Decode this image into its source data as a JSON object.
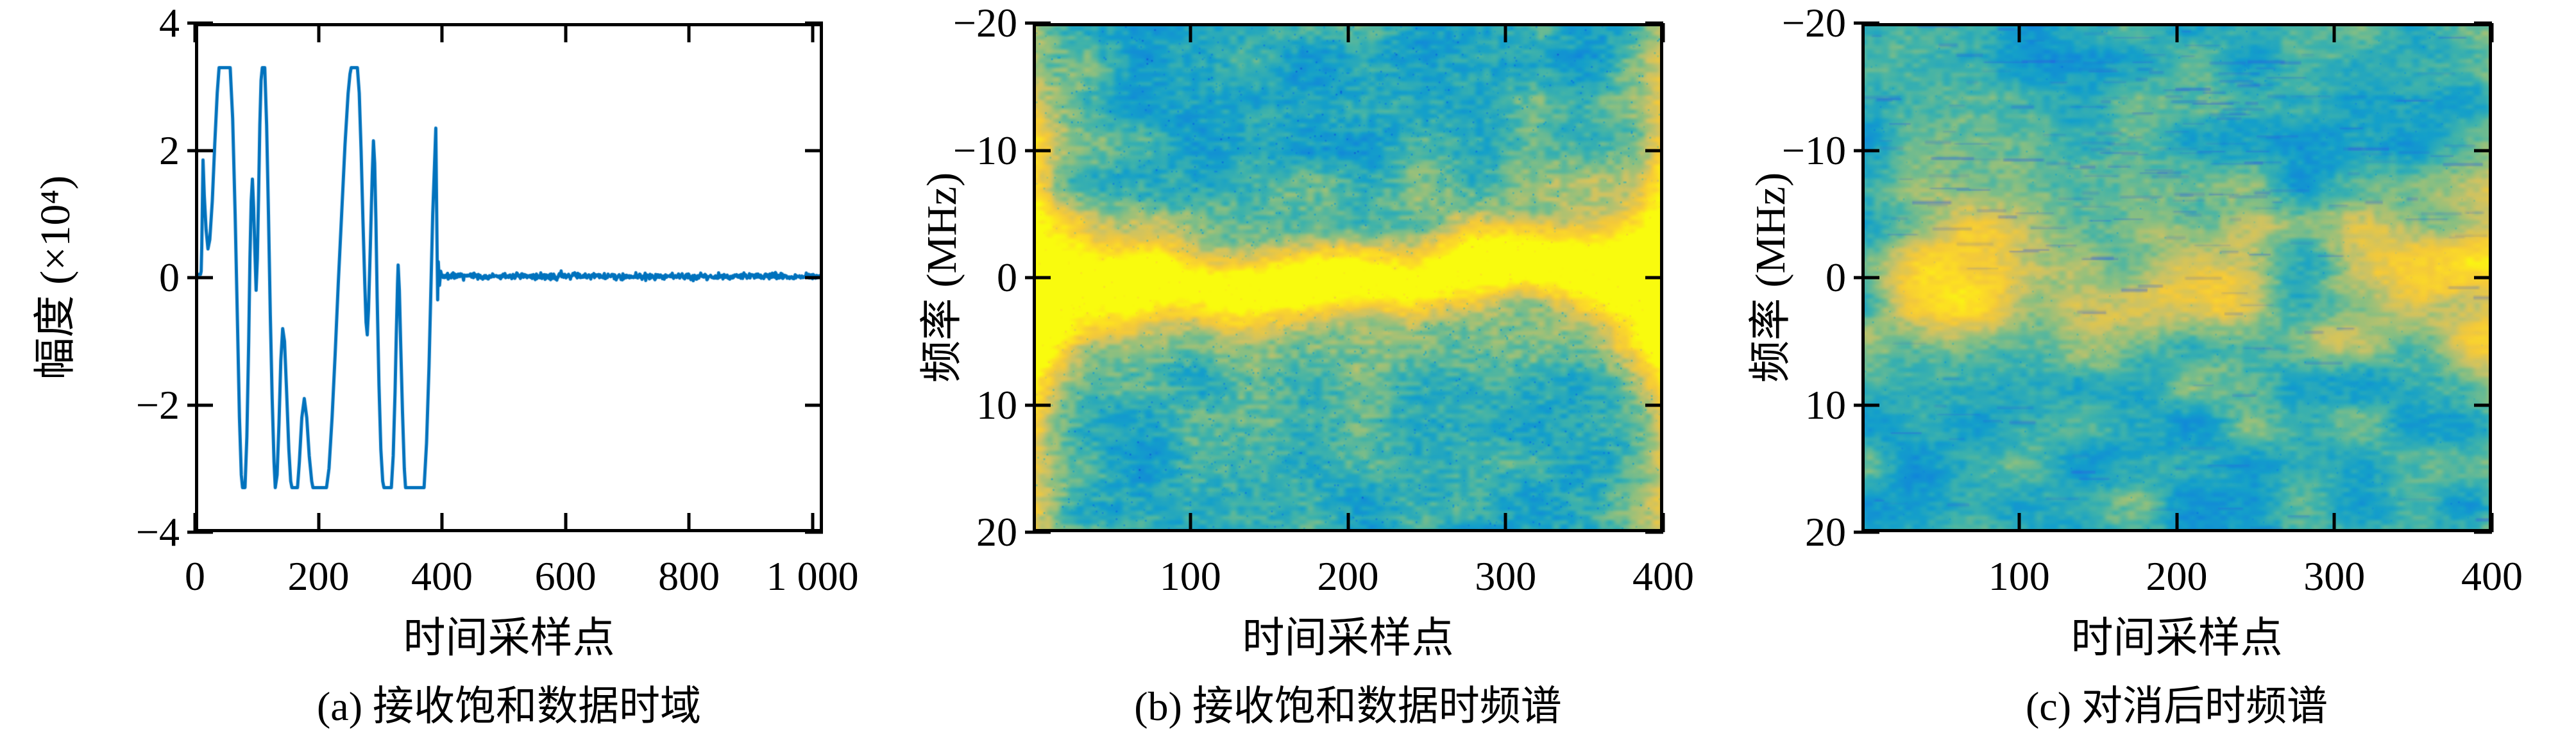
{
  "figure": {
    "panels": [
      {
        "caption": "(a) 接收饱和数据时域",
        "xlabel": "时间采样点",
        "ylabel": "幅度 (×10⁴)",
        "xtick_labels": [
          "0",
          "200",
          "400",
          "600",
          "800",
          "1 000"
        ],
        "ytick_labels": [
          "4",
          "2",
          "0",
          "−2",
          "−4"
        ]
      },
      {
        "caption": "(b) 接收饱和数据时频谱",
        "xlabel": "时间采样点",
        "ylabel": "频率 (MHz)",
        "xtick_labels": [
          "100",
          "200",
          "300",
          "400"
        ],
        "ytick_labels": [
          "−20",
          "−10",
          "0",
          "10",
          "20"
        ]
      },
      {
        "caption": "(c) 对消后时频谱",
        "xlabel": "时间采样点",
        "ylabel": "频率 (MHz)",
        "xtick_labels": [
          "100",
          "200",
          "300",
          "400"
        ],
        "ytick_labels": [
          "−20",
          "−10",
          "0",
          "10",
          "20"
        ]
      }
    ]
  },
  "chart_data": [
    {
      "type": "line",
      "panel": "a",
      "title": "(a) 接收饱和数据时域",
      "xlabel": "时间采样点",
      "ylabel": "幅度 (×10⁴)",
      "xlim": [
        0,
        1017
      ],
      "ylim_top_bottom": [
        4,
        -4
      ],
      "xticks": [
        0,
        200,
        400,
        600,
        800,
        1000
      ],
      "yticks": [
        4,
        2,
        0,
        -2,
        -4
      ],
      "line_color": "#0072BD",
      "clip_level_e4": 3.3,
      "saturated_region_samples": [
        0,
        400
      ],
      "noise_tail": {
        "from": 400,
        "to": 1017,
        "mean": 0.02,
        "amplitude": 0.07
      },
      "points": [
        [
          0,
          0.05
        ],
        [
          9,
          0.05
        ],
        [
          10,
          0.1
        ],
        [
          11,
          0.5
        ],
        [
          13,
          1.85
        ],
        [
          15,
          1.3
        ],
        [
          18,
          0.75
        ],
        [
          21,
          0.45
        ],
        [
          24,
          0.6
        ],
        [
          28,
          1.2
        ],
        [
          32,
          2.1
        ],
        [
          36,
          2.9
        ],
        [
          39,
          3.3
        ],
        [
          57,
          3.3
        ],
        [
          61,
          2.5
        ],
        [
          65,
          1.0
        ],
        [
          69,
          -0.8
        ],
        [
          72,
          -2.2
        ],
        [
          75,
          -3.1
        ],
        [
          77,
          -3.3
        ],
        [
          81,
          -3.3
        ],
        [
          84,
          -2.5
        ],
        [
          87,
          -1.0
        ],
        [
          89,
          0.3
        ],
        [
          91,
          1.2
        ],
        [
          93,
          1.55
        ],
        [
          95,
          1.1
        ],
        [
          97,
          0.4
        ],
        [
          99,
          -0.2
        ],
        [
          101,
          0.3
        ],
        [
          103,
          1.3
        ],
        [
          105,
          2.4
        ],
        [
          107,
          3.1
        ],
        [
          109,
          3.3
        ],
        [
          113,
          3.3
        ],
        [
          116,
          2.4
        ],
        [
          119,
          1.0
        ],
        [
          122,
          -0.6
        ],
        [
          125,
          -1.9
        ],
        [
          128,
          -2.9
        ],
        [
          130,
          -3.3
        ],
        [
          133,
          -3.1
        ],
        [
          136,
          -2.3
        ],
        [
          139,
          -1.3
        ],
        [
          142,
          -0.8
        ],
        [
          145,
          -1.0
        ],
        [
          148,
          -1.7
        ],
        [
          152,
          -2.7
        ],
        [
          155,
          -3.2
        ],
        [
          157,
          -3.3
        ],
        [
          166,
          -3.3
        ],
        [
          169,
          -2.9
        ],
        [
          173,
          -2.2
        ],
        [
          177,
          -1.9
        ],
        [
          181,
          -2.2
        ],
        [
          185,
          -2.8
        ],
        [
          189,
          -3.2
        ],
        [
          191,
          -3.3
        ],
        [
          213,
          -3.3
        ],
        [
          217,
          -3.0
        ],
        [
          222,
          -2.2
        ],
        [
          227,
          -1.2
        ],
        [
          232,
          -0.1
        ],
        [
          238,
          1.1
        ],
        [
          243,
          2.1
        ],
        [
          248,
          2.9
        ],
        [
          251,
          3.2
        ],
        [
          253,
          3.3
        ],
        [
          263,
          3.3
        ],
        [
          266,
          2.9
        ],
        [
          269,
          2.0
        ],
        [
          272,
          0.9
        ],
        [
          275,
          -0.1
        ],
        [
          277,
          -0.7
        ],
        [
          279,
          -0.9
        ],
        [
          281,
          -0.5
        ],
        [
          284,
          0.5
        ],
        [
          287,
          1.6
        ],
        [
          289,
          2.15
        ],
        [
          291,
          1.8
        ],
        [
          293,
          0.9
        ],
        [
          295,
          -0.3
        ],
        [
          298,
          -1.7
        ],
        [
          301,
          -2.7
        ],
        [
          304,
          -3.2
        ],
        [
          306,
          -3.3
        ],
        [
          318,
          -3.3
        ],
        [
          321,
          -2.8
        ],
        [
          324,
          -1.8
        ],
        [
          326,
          -0.9
        ],
        [
          328,
          -0.1
        ],
        [
          329,
          0.2
        ],
        [
          331,
          -0.2
        ],
        [
          333,
          -1.0
        ],
        [
          336,
          -2.1
        ],
        [
          339,
          -3.0
        ],
        [
          341,
          -3.3
        ],
        [
          371,
          -3.3
        ],
        [
          375,
          -2.6
        ],
        [
          379,
          -1.4
        ],
        [
          382,
          -0.2
        ],
        [
          385,
          1.0
        ],
        [
          388,
          1.8
        ],
        [
          390,
          2.35
        ],
        [
          391,
          1.4
        ],
        [
          392,
          0.5
        ],
        [
          393,
          -0.35
        ],
        [
          394,
          0.25
        ],
        [
          396,
          -0.12
        ],
        [
          398,
          0.1
        ],
        [
          400,
          0.02
        ]
      ]
    },
    {
      "type": "heatmap",
      "panel": "b",
      "title": "(b) 接收饱和数据时频谱",
      "xlabel": "时间采样点",
      "ylabel": "频率 (MHz)",
      "xlim": [
        0,
        400
      ],
      "ylim_top_bottom": [
        -20,
        20
      ],
      "xticks": [
        100,
        200,
        300,
        400
      ],
      "yticks": [
        -20,
        -10,
        0,
        10,
        20
      ],
      "colormap": "parula",
      "colormap_stops": [
        [
          0.0,
          "#352a87"
        ],
        [
          0.1,
          "#1547c9"
        ],
        [
          0.2,
          "#046de0"
        ],
        [
          0.3,
          "#1188d9"
        ],
        [
          0.4,
          "#14a0ca"
        ],
        [
          0.5,
          "#40b3aa"
        ],
        [
          0.6,
          "#88bf82"
        ],
        [
          0.7,
          "#cbc265"
        ],
        [
          0.8,
          "#f4c93a"
        ],
        [
          0.9,
          "#fddd25"
        ],
        [
          1.0,
          "#f9fb0e"
        ]
      ],
      "background_level": 0.44,
      "noise": {
        "low": 0.1,
        "high": 0.07
      },
      "ridge": {
        "amplitude": 0.55,
        "halo": 0.16,
        "sigma_mhz": 1.75,
        "edge_sigma_add": 5.0,
        "edge_sigma_scale": 25,
        "centers_mhz": [
          [
            0,
            0.8
          ],
          [
            40,
            1.1
          ],
          [
            80,
            0.2
          ],
          [
            120,
            1.3
          ],
          [
            160,
            0.6
          ],
          [
            200,
            -0.1
          ],
          [
            240,
            0.4
          ],
          [
            270,
            -1.0
          ],
          [
            310,
            -1.6
          ],
          [
            350,
            -0.8
          ],
          [
            400,
            0.1
          ]
        ]
      },
      "edge_green": {
        "amplitude": 0.16,
        "scale_samples": 14
      },
      "speckle": {
        "density": 0.016,
        "strength": 0.22
      }
    },
    {
      "type": "heatmap",
      "panel": "c",
      "title": "(c) 对消后时频谱",
      "xlabel": "时间采样点",
      "ylabel": "频率 (MHz)",
      "xlim": [
        0,
        400
      ],
      "ylim_top_bottom": [
        -20,
        20
      ],
      "xticks": [
        100,
        200,
        300,
        400
      ],
      "yticks": [
        -20,
        -10,
        0,
        10,
        20
      ],
      "colormap": "parula",
      "colormap_stops": [
        [
          0.0,
          "#352a87"
        ],
        [
          0.1,
          "#1547c9"
        ],
        [
          0.2,
          "#046de0"
        ],
        [
          0.3,
          "#1188d9"
        ],
        [
          0.4,
          "#14a0ca"
        ],
        [
          0.5,
          "#40b3aa"
        ],
        [
          0.6,
          "#88bf82"
        ],
        [
          0.7,
          "#cbc265"
        ],
        [
          0.8,
          "#f4c93a"
        ],
        [
          0.9,
          "#fddd25"
        ],
        [
          1.0,
          "#f9fb0e"
        ]
      ],
      "background_level": 0.46,
      "noise": {
        "low": 0.12,
        "high": 0.05
      },
      "blobs_x_mhz_rx_ry_amp": [
        [
          40,
          1,
          30,
          3.5,
          0.2
        ],
        [
          72,
          -2,
          26,
          3,
          0.24
        ],
        [
          58,
          4,
          24,
          2.5,
          0.14
        ],
        [
          100,
          1,
          22,
          3,
          0.16
        ],
        [
          30,
          -5,
          20,
          2.5,
          0.1
        ],
        [
          150,
          5,
          22,
          2.5,
          0.08
        ],
        [
          178,
          2,
          28,
          3.5,
          0.15
        ],
        [
          205,
          -1,
          26,
          3,
          0.2
        ],
        [
          232,
          2,
          20,
          3,
          0.15
        ],
        [
          252,
          -2,
          16,
          2.5,
          0.1
        ],
        [
          295,
          4,
          18,
          2.5,
          0.08
        ],
        [
          322,
          0,
          28,
          4,
          0.19
        ],
        [
          352,
          -2,
          26,
          3,
          0.15
        ],
        [
          383,
          1,
          24,
          4,
          0.21
        ],
        [
          396,
          5,
          14,
          3,
          0.1
        ],
        [
          398,
          -4,
          12,
          3,
          0.12
        ]
      ],
      "right_edge_green": {
        "amplitude": 0.1,
        "scale_samples": 12
      },
      "dashes": {
        "count": 170,
        "color": "#2e5be4",
        "cluster": {
          "count": 45,
          "x_range": [
            140,
            260
          ],
          "y_range_mhz": [
            -17,
            -6
          ]
        }
      },
      "speckle": {
        "density": 0.004,
        "strength": 0.12
      }
    }
  ]
}
